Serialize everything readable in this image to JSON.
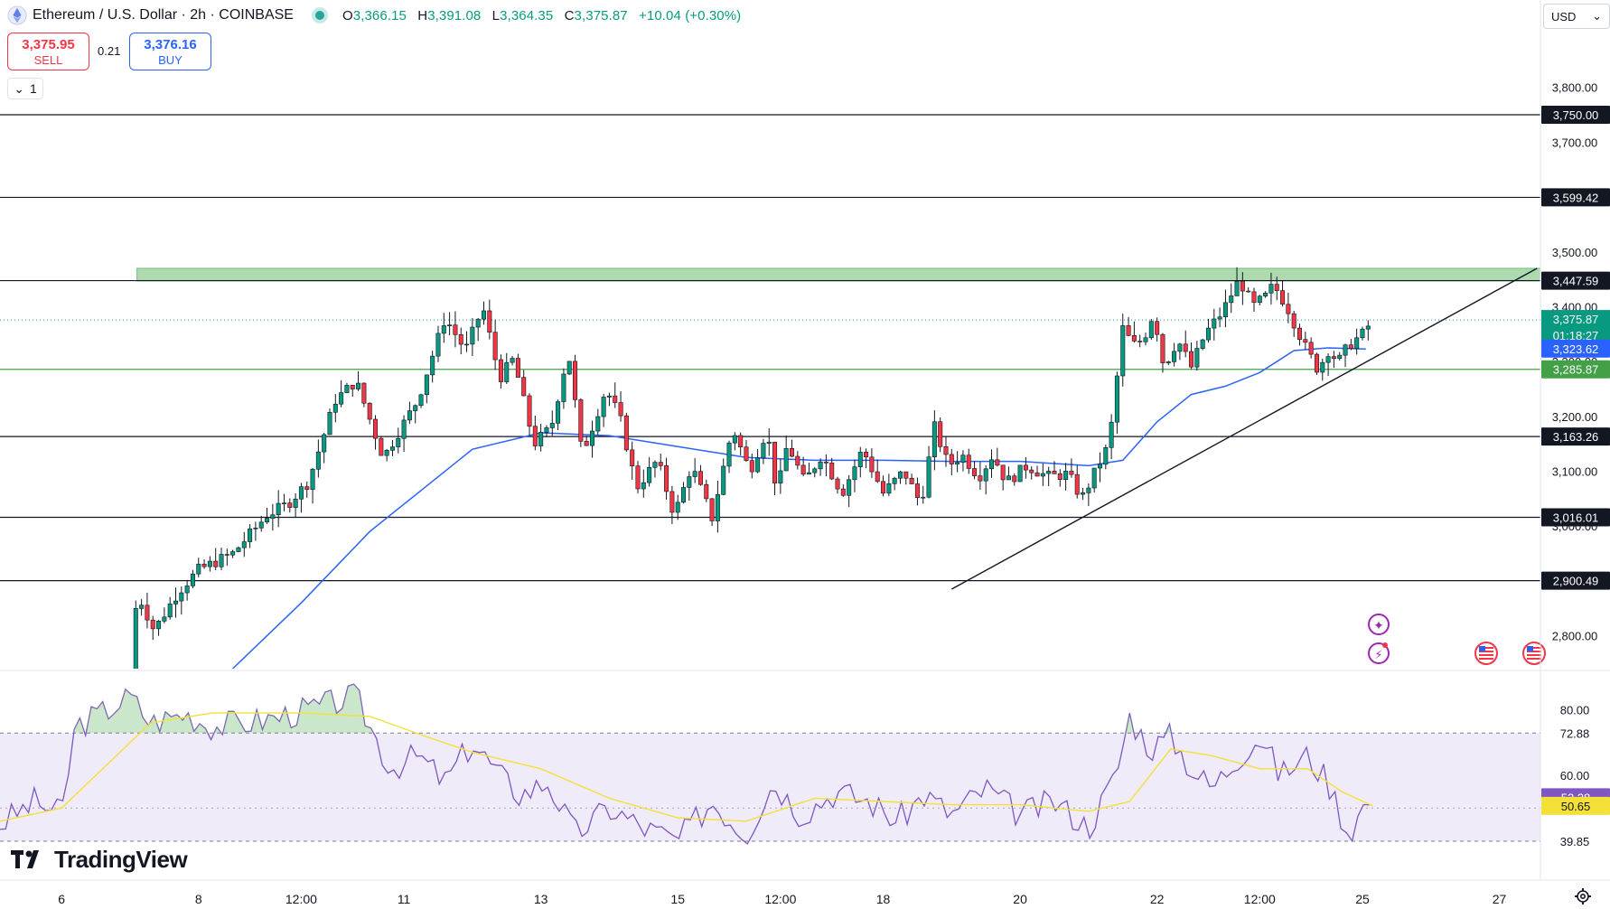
{
  "header": {
    "title": "Ethereum / U.S. Dollar · 2h · COINBASE",
    "open_label": "O",
    "open": "3,366.15",
    "high_label": "H",
    "high": "3,391.08",
    "low_label": "L",
    "low": "3,364.35",
    "close_label": "C",
    "close": "3,375.87",
    "change": "+10.04 (+0.30%)"
  },
  "trade": {
    "sell_price": "3,375.95",
    "sell_label": "SELL",
    "spread": "0.21",
    "buy_price": "3,376.16",
    "buy_label": "BUY"
  },
  "collapse_count": "1",
  "currency": "USD",
  "brand": "TradingView",
  "colors": {
    "up": "#089981",
    "down": "#f23645",
    "ma": "#2962ff",
    "rsi": "#7e57c2",
    "rsi_ma": "#f5e03a",
    "zone": "#a5d6a7"
  },
  "chart_data": {
    "type": "candlestick",
    "y_axis": {
      "range": [
        2740,
        3900
      ],
      "ticks": [
        "3,800.00",
        "3,700.00",
        "3,600.00",
        "3,500.00",
        "3,400.00",
        "3,300.00",
        "3,200.00",
        "3,100.00",
        "3,000.00",
        "2,800.00"
      ],
      "tick_values": [
        3800,
        3700,
        3600,
        3500,
        3400,
        3300,
        3200,
        3100,
        3000,
        2800
      ]
    },
    "x_axis": {
      "labels": [
        "6",
        "8",
        "12:00",
        "11",
        "13",
        "15",
        "12:00",
        "18",
        "20",
        "22",
        "12:00",
        "25",
        "27"
      ],
      "label_days": [
        6,
        8,
        9.5,
        11,
        13,
        15,
        16.5,
        18,
        20,
        22,
        23.5,
        25,
        27
      ],
      "range_days": [
        5.1,
        27.6
      ]
    },
    "horizontal_levels": [
      {
        "value": 3750.0,
        "label": "3,750.00"
      },
      {
        "value": 3599.42,
        "label": "3,599.42"
      },
      {
        "value": 3447.59,
        "label": "3,447.59"
      },
      {
        "value": 3163.26,
        "label": "3,163.26"
      },
      {
        "value": 3016.01,
        "label": "3,016.01"
      },
      {
        "value": 2900.49,
        "label": "2,900.49"
      }
    ],
    "support_level": {
      "value": 3285.87,
      "label": "3,285.87"
    },
    "resistance_zone": {
      "from": 3447,
      "to": 3470,
      "start_day": 7.1
    },
    "last_price": {
      "value": 3375.87,
      "label": "3,375.87",
      "countdown": "01:18:27"
    },
    "ma_value": {
      "value": 3323.62,
      "label": "3,323.62"
    },
    "trendline": [
      {
        "day": 19.0,
        "price": 2885
      },
      {
        "day": 27.55,
        "price": 3470
      }
    ],
    "price_path_days": [
      7.0,
      7.1,
      7.35,
      7.7,
      8.0,
      8.5,
      9.0,
      9.3,
      9.6,
      10.0,
      10.3,
      10.7,
      11.2,
      11.6,
      11.9,
      12.15,
      12.4,
      12.6,
      12.9,
      13.15,
      13.4,
      13.6,
      13.95,
      14.15,
      14.4,
      14.7,
      14.95,
      15.2,
      15.5,
      15.8,
      16.05,
      16.3,
      16.45,
      16.6,
      16.85,
      17.1,
      17.4,
      17.7,
      18.0,
      18.3,
      18.55,
      18.75,
      18.95,
      19.15,
      19.4,
      19.6,
      19.8,
      20.1,
      20.4,
      20.7,
      20.9,
      21.1,
      21.3,
      21.5,
      21.65,
      21.8,
      21.95,
      22.1,
      22.3,
      22.5,
      22.7,
      22.95,
      23.2,
      23.4,
      23.6,
      23.7,
      23.9,
      24.15,
      24.35,
      24.5,
      24.65,
      24.8,
      25.0,
      25.15
    ],
    "price_path_values": [
      2700,
      2880,
      2810,
      2880,
      2920,
      2950,
      3020,
      3040,
      3080,
      3230,
      3265,
      3125,
      3230,
      3380,
      3320,
      3400,
      3270,
      3305,
      3150,
      3180,
      3320,
      3130,
      3250,
      3200,
      3070,
      3120,
      3020,
      3110,
      3015,
      3180,
      3100,
      3175,
      3060,
      3150,
      3080,
      3130,
      3060,
      3140,
      3060,
      3100,
      3040,
      3180,
      3110,
      3130,
      3090,
      3130,
      3080,
      3110,
      3090,
      3095,
      3050,
      3100,
      3150,
      3360,
      3330,
      3340,
      3390,
      3290,
      3340,
      3290,
      3350,
      3390,
      3450,
      3400,
      3420,
      3440,
      3400,
      3330,
      3285,
      3320,
      3300,
      3330,
      3350,
      3376
    ],
    "ma_path_days": [
      8.5,
      9.5,
      10.5,
      11.4,
      12.0,
      13.0,
      14.0,
      15.0,
      16.0,
      17.0,
      18.0,
      19.0,
      20.0,
      21.0,
      21.5,
      22.0,
      22.5,
      23.0,
      23.5,
      24.0,
      24.5,
      25.05
    ],
    "ma_path_values": [
      2740,
      2860,
      2990,
      3080,
      3140,
      3170,
      3165,
      3145,
      3125,
      3120,
      3120,
      3118,
      3118,
      3110,
      3120,
      3190,
      3240,
      3255,
      3280,
      3320,
      3325,
      3323
    ],
    "rsi": {
      "range": [
        28,
        92
      ],
      "ticks": [
        "80.00",
        "60.00"
      ],
      "tick_values": [
        80,
        60
      ],
      "bands": [
        72.88,
        39.85
      ],
      "band_labels": [
        "72.88",
        "39.85"
      ],
      "mid": 50,
      "rsi_value": {
        "value": 53.28,
        "label": "53.28"
      },
      "ma_value": {
        "value": 50.65,
        "label": "50.65"
      },
      "rsi_path_days": [
        5.1,
        5.6,
        6.0,
        6.2,
        6.5,
        7.0,
        7.3,
        7.8,
        8.2,
        9.0,
        9.6,
        10.3,
        10.8,
        11.2,
        11.6,
        12.0,
        12.4,
        12.7,
        13.1,
        13.5,
        14.0,
        14.5,
        15.0,
        15.5,
        16.0,
        16.4,
        16.8,
        17.3,
        17.8,
        18.2,
        18.6,
        19.0,
        19.5,
        20.0,
        20.5,
        21.0,
        21.4,
        21.6,
        21.9,
        22.2,
        22.5,
        22.8,
        23.2,
        23.5,
        23.8,
        24.2,
        24.5,
        24.8,
        25.0,
        25.15
      ],
      "rsi_path_values": [
        45,
        52,
        48,
        75,
        78,
        84,
        76,
        79,
        75,
        77,
        80,
        84,
        62,
        66,
        58,
        70,
        60,
        54,
        58,
        42,
        50,
        44,
        40,
        52,
        42,
        58,
        48,
        55,
        52,
        46,
        54,
        48,
        56,
        48,
        52,
        44,
        60,
        78,
        68,
        72,
        62,
        56,
        66,
        72,
        60,
        66,
        58,
        42,
        50,
        53.28
      ],
      "ma_path_days": [
        5.1,
        6.0,
        6.6,
        7.3,
        8.2,
        9.5,
        10.5,
        11.3,
        12.0,
        13.0,
        14.0,
        15.0,
        16.0,
        17.0,
        18.0,
        19.0,
        20.0,
        21.0,
        21.6,
        22.2,
        22.8,
        23.5,
        24.2,
        24.7,
        25.15
      ],
      "ma_path_values": [
        46,
        50,
        62,
        76,
        79,
        79,
        78,
        72,
        67,
        62,
        53,
        47,
        46,
        53,
        52,
        51,
        51,
        49,
        52,
        68,
        66,
        62,
        62,
        55,
        50.65
      ]
    }
  }
}
